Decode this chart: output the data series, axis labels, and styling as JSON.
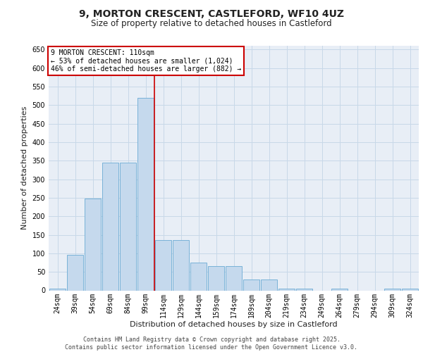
{
  "title_line1": "9, MORTON CRESCENT, CASTLEFORD, WF10 4UZ",
  "title_line2": "Size of property relative to detached houses in Castleford",
  "xlabel": "Distribution of detached houses by size in Castleford",
  "ylabel": "Number of detached properties",
  "footer_line1": "Contains HM Land Registry data © Crown copyright and database right 2025.",
  "footer_line2": "Contains public sector information licensed under the Open Government Licence v3.0.",
  "categories": [
    "24sqm",
    "39sqm",
    "54sqm",
    "69sqm",
    "84sqm",
    "99sqm",
    "114sqm",
    "129sqm",
    "144sqm",
    "159sqm",
    "174sqm",
    "189sqm",
    "204sqm",
    "219sqm",
    "234sqm",
    "249sqm",
    "264sqm",
    "279sqm",
    "294sqm",
    "309sqm",
    "324sqm"
  ],
  "values": [
    5,
    95,
    248,
    345,
    345,
    520,
    135,
    135,
    75,
    65,
    65,
    30,
    30,
    5,
    5,
    0,
    5,
    0,
    0,
    5,
    5
  ],
  "bar_color": "#c5d9ed",
  "bar_edge_color": "#6aaad4",
  "grid_color": "#c8d8e8",
  "bg_color": "#e8eef6",
  "red_line_x": 5.5,
  "annotation_text": "9 MORTON CRESCENT: 110sqm\n← 53% of detached houses are smaller (1,024)\n46% of semi-detached houses are larger (882) →",
  "annotation_box_color": "#ffffff",
  "annotation_box_edge": "#cc0000",
  "ylim": [
    0,
    660
  ],
  "yticks": [
    0,
    50,
    100,
    150,
    200,
    250,
    300,
    350,
    400,
    450,
    500,
    550,
    600,
    650
  ],
  "title_fontsize": 10,
  "subtitle_fontsize": 8.5,
  "ylabel_fontsize": 8,
  "xlabel_fontsize": 8,
  "footer_fontsize": 6,
  "tick_fontsize": 7,
  "annot_fontsize": 7
}
